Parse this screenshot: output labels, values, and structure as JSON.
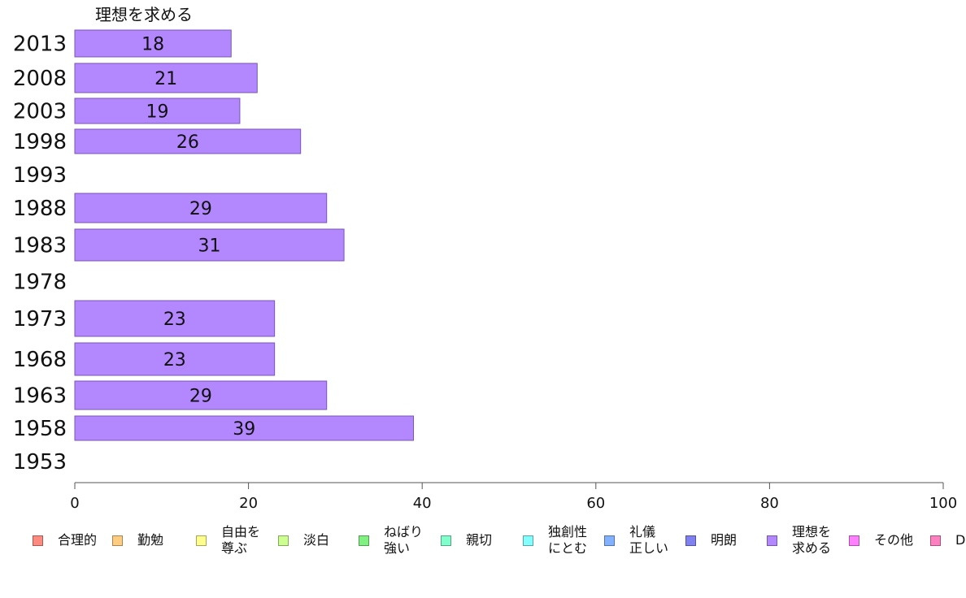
{
  "chart_data": {
    "type": "bar",
    "orientation": "horizontal",
    "title": "理想を求める",
    "categories": [
      "2013",
      "2008",
      "2003",
      "1998",
      "1993",
      "1988",
      "1983",
      "1978",
      "1973",
      "1968",
      "1963",
      "1958",
      "1953"
    ],
    "series": [
      {
        "name": "理想を求める",
        "color": "#b388ff",
        "values": [
          18,
          21,
          19,
          26,
          null,
          29,
          31,
          null,
          23,
          23,
          29,
          39,
          null
        ],
        "labels": [
          "18",
          "21",
          "19",
          "26",
          "",
          "29",
          "31",
          "",
          "23",
          "23",
          "29",
          "39",
          ""
        ]
      }
    ],
    "xlim": [
      0,
      100
    ],
    "x_ticks": [
      "0",
      "20",
      "40",
      "60",
      "80",
      "100"
    ],
    "grid": false,
    "legend_position": "bottom"
  },
  "legend": [
    {
      "label": "合理的",
      "color": "#ff8a80"
    },
    {
      "label": "勤勉",
      "color": "#ffcc80"
    },
    {
      "label": "自由を\n尊ぶ",
      "color": "#ffff8d"
    },
    {
      "label": "淡白",
      "color": "#ccff90"
    },
    {
      "label": "ねばり\n強い",
      "color": "#80f080"
    },
    {
      "label": "親切",
      "color": "#80ffcc"
    },
    {
      "label": "独創性\nにとむ",
      "color": "#84ffff"
    },
    {
      "label": "礼儀\n正しい",
      "color": "#82b1ff"
    },
    {
      "label": "明朗",
      "color": "#8080f0"
    },
    {
      "label": "理想を\n求める",
      "color": "#b388ff"
    },
    {
      "label": "その他",
      "color": "#ff80ff"
    },
    {
      "label": "D",
      "color": "#ff80c0"
    }
  ]
}
